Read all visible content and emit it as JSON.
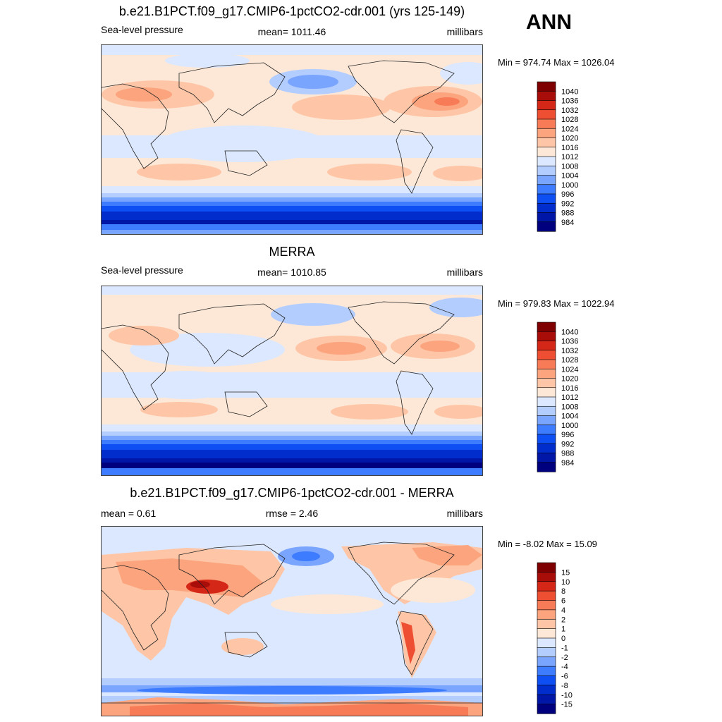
{
  "season": "ANN",
  "colors": {
    "abs": [
      "#00007f",
      "#0016a6",
      "#002dcc",
      "#0d4ff2",
      "#3d7bff",
      "#7aa5ff",
      "#b3cdff",
      "#dce8ff",
      "#fde8d7",
      "#fec6a7",
      "#fba47e",
      "#f77b56",
      "#ee4e31",
      "#d42717",
      "#a90d0a",
      "#7f0000"
    ],
    "diff": [
      "#00007f",
      "#0016a6",
      "#002dcc",
      "#0d4ff2",
      "#3d7bff",
      "#7aa5ff",
      "#b3cdff",
      "#dce8ff",
      "#fde8d7",
      "#fec6a7",
      "#fba47e",
      "#f77b56",
      "#ee4e31",
      "#d42717",
      "#a90d0a",
      "#7f0000"
    ]
  },
  "panels": [
    {
      "title": "b.e21.B1PCT.f09_g17.CMIP6-1pctCO2-cdr.001 (yrs 125-149)",
      "left_label": "Sea-level pressure",
      "center_label": "mean= 1011.46",
      "right_label": "millibars",
      "minmax": "Min = 974.74 Max = 1026.04",
      "levels": [
        "1040",
        "1036",
        "1032",
        "1028",
        "1024",
        "1020",
        "1016",
        "1012",
        "1008",
        "1004",
        "1000",
        "996",
        "992",
        "988",
        "984"
      ]
    },
    {
      "title": "MERRA",
      "left_label": "Sea-level pressure",
      "center_label": "mean= 1010.85",
      "right_label": "millibars",
      "minmax": "Min = 979.83 Max = 1022.94",
      "levels": [
        "1040",
        "1036",
        "1032",
        "1028",
        "1024",
        "1020",
        "1016",
        "1012",
        "1008",
        "1004",
        "1000",
        "996",
        "992",
        "988",
        "984"
      ]
    },
    {
      "title": "b.e21.B1PCT.f09_g17.CMIP6-1pctCO2-cdr.001 - MERRA",
      "left_label": "mean =   0.61",
      "center_label": "rmse =   2.46",
      "right_label": "millibars",
      "minmax": "Min =  -8.02 Max =  15.09",
      "levels": [
        "15",
        "10",
        "8",
        "6",
        "4",
        "2",
        "1",
        "0",
        "-1",
        "-2",
        "-4",
        "-6",
        "-8",
        "-10",
        "-15"
      ]
    }
  ],
  "chart_data": [
    {
      "type": "heatmap",
      "title": "b.e21.B1PCT.f09_g17.CMIP6-1pctCO2-cdr.001 (yrs 125-149)",
      "variable": "Sea-level pressure",
      "units": "millibars",
      "mean": 1011.46,
      "min": 974.74,
      "max": 1026.04,
      "levels": [
        984,
        988,
        992,
        996,
        1000,
        1004,
        1008,
        1012,
        1016,
        1020,
        1024,
        1028,
        1032,
        1036,
        1040
      ]
    },
    {
      "type": "heatmap",
      "title": "MERRA",
      "variable": "Sea-level pressure",
      "units": "millibars",
      "mean": 1010.85,
      "min": 979.83,
      "max": 1022.94,
      "levels": [
        984,
        988,
        992,
        996,
        1000,
        1004,
        1008,
        1012,
        1016,
        1020,
        1024,
        1028,
        1032,
        1036,
        1040
      ]
    },
    {
      "type": "heatmap",
      "title": "b.e21.B1PCT.f09_g17.CMIP6-1pctCO2-cdr.001 - MERRA",
      "units": "millibars",
      "mean": 0.61,
      "rmse": 2.46,
      "min": -8.02,
      "max": 15.09,
      "levels": [
        -15,
        -10,
        -8,
        -6,
        -4,
        -2,
        -1,
        0,
        1,
        2,
        4,
        6,
        8,
        10,
        15
      ]
    }
  ]
}
